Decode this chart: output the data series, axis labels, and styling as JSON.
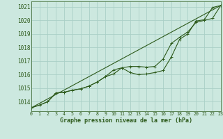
{
  "background_color": "#cce8df",
  "grid_color": "#aacfc6",
  "line_color": "#2d5a1b",
  "title": "Graphe pression niveau de la mer (hPa)",
  "xlim": [
    0,
    23
  ],
  "ylim": [
    1013.3,
    1021.4
  ],
  "yticks": [
    1014,
    1015,
    1016,
    1017,
    1018,
    1019,
    1020,
    1021
  ],
  "xticks": [
    0,
    1,
    2,
    3,
    4,
    5,
    6,
    7,
    8,
    9,
    10,
    11,
    12,
    13,
    14,
    15,
    16,
    17,
    18,
    19,
    20,
    21,
    22,
    23
  ],
  "series1_x": [
    0,
    1,
    2,
    3,
    4,
    5,
    6,
    7,
    8,
    9,
    10,
    11,
    12,
    13,
    14,
    15,
    16,
    17,
    18,
    19,
    20,
    21,
    22,
    23
  ],
  "series1_y": [
    1013.55,
    1013.75,
    1014.0,
    1014.65,
    1014.7,
    1014.85,
    1014.95,
    1015.15,
    1015.45,
    1015.85,
    1016.05,
    1016.5,
    1016.15,
    1016.0,
    1016.05,
    1016.15,
    1016.3,
    1017.3,
    1018.6,
    1019.0,
    1019.95,
    1020.05,
    1020.95,
    1021.1
  ],
  "series2_x": [
    0,
    1,
    2,
    3,
    4,
    5,
    6,
    7,
    8,
    9,
    10,
    11,
    12,
    13,
    14,
    15,
    16,
    17,
    18,
    19,
    20,
    21,
    22,
    23
  ],
  "series2_y": [
    1013.55,
    1013.75,
    1014.0,
    1014.65,
    1014.7,
    1014.85,
    1014.95,
    1015.15,
    1015.45,
    1015.85,
    1016.35,
    1016.5,
    1016.6,
    1016.6,
    1016.55,
    1016.6,
    1017.15,
    1018.3,
    1018.75,
    1019.15,
    1019.85,
    1020.0,
    1020.15,
    1021.1
  ],
  "trend_x": [
    0,
    23
  ],
  "trend_y": [
    1013.55,
    1021.1
  ]
}
